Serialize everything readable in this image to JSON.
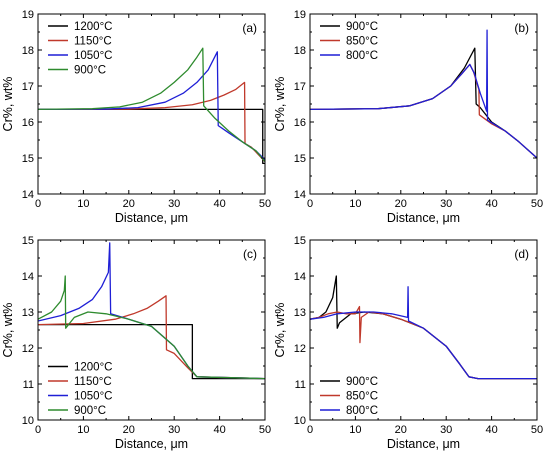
{
  "chart_data": [
    {
      "type": "line",
      "panel": "(a)",
      "xlabel": "Distance, μm",
      "ylabel": "Cr%, wt%",
      "xlim": [
        0,
        50
      ],
      "ylim": [
        14,
        19
      ],
      "xticks": [
        0,
        10,
        20,
        30,
        40,
        50
      ],
      "yticks": [
        14,
        15,
        16,
        17,
        18,
        19
      ],
      "legend_position": "top-left",
      "series": [
        {
          "name": "1200°C",
          "color": "#000000",
          "points": [
            [
              0,
              16.35
            ],
            [
              49.5,
              16.35
            ],
            [
              49.5,
              14.85
            ],
            [
              50,
              14.85
            ]
          ]
        },
        {
          "name": "1150°C",
          "color": "#c0392b",
          "points": [
            [
              0,
              16.35
            ],
            [
              10,
              16.35
            ],
            [
              20,
              16.36
            ],
            [
              28,
              16.4
            ],
            [
              34,
              16.48
            ],
            [
              38,
              16.6
            ],
            [
              41,
              16.75
            ],
            [
              43.5,
              16.9
            ],
            [
              45.5,
              17.1
            ],
            [
              45.6,
              15.4
            ],
            [
              47,
              15.3
            ],
            [
              48.5,
              15.1
            ],
            [
              50,
              14.9
            ]
          ]
        },
        {
          "name": "1050°C",
          "color": "#1f1fd6",
          "points": [
            [
              0,
              16.35
            ],
            [
              15,
              16.36
            ],
            [
              22,
              16.4
            ],
            [
              28,
              16.55
            ],
            [
              32,
              16.8
            ],
            [
              35,
              17.1
            ],
            [
              37.5,
              17.45
            ],
            [
              39.5,
              17.95
            ],
            [
              39.7,
              15.9
            ],
            [
              42,
              15.7
            ],
            [
              45,
              15.45
            ],
            [
              48,
              15.2
            ],
            [
              50,
              14.95
            ]
          ]
        },
        {
          "name": "900°C",
          "color": "#2e8b2e",
          "points": [
            [
              0,
              16.35
            ],
            [
              12,
              16.37
            ],
            [
              18,
              16.42
            ],
            [
              23,
              16.55
            ],
            [
              27,
              16.8
            ],
            [
              30,
              17.1
            ],
            [
              33,
              17.45
            ],
            [
              35,
              17.8
            ],
            [
              36.3,
              18.05
            ],
            [
              36.5,
              16.45
            ],
            [
              39,
              16.1
            ],
            [
              42,
              15.75
            ],
            [
              45,
              15.45
            ],
            [
              48,
              15.2
            ],
            [
              50,
              14.9
            ]
          ]
        }
      ]
    },
    {
      "type": "line",
      "panel": "(b)",
      "xlabel": "Distance, μm",
      "ylabel": "Cr%, wt%",
      "xlim": [
        0,
        50
      ],
      "ylim": [
        14,
        19
      ],
      "xticks": [
        0,
        10,
        20,
        30,
        40,
        50
      ],
      "yticks": [
        14,
        15,
        16,
        17,
        18,
        19
      ],
      "legend_position": "top-left",
      "series": [
        {
          "name": "900°C",
          "color": "#000000",
          "points": [
            [
              0,
              16.35
            ],
            [
              15,
              16.37
            ],
            [
              22,
              16.45
            ],
            [
              27,
              16.65
            ],
            [
              31,
              17.0
            ],
            [
              34,
              17.5
            ],
            [
              36.3,
              18.05
            ],
            [
              36.6,
              16.5
            ],
            [
              37.5,
              16.4
            ],
            [
              40,
              16.0
            ],
            [
              43,
              15.75
            ],
            [
              46,
              15.45
            ],
            [
              50,
              15.0
            ]
          ]
        },
        {
          "name": "850°C",
          "color": "#c0392b",
          "points": [
            [
              0,
              16.35
            ],
            [
              15,
              16.37
            ],
            [
              22,
              16.45
            ],
            [
              27,
              16.65
            ],
            [
              31,
              17.0
            ],
            [
              33.5,
              17.35
            ],
            [
              35.2,
              17.6
            ],
            [
              36,
              17.4
            ],
            [
              37.2,
              16.9
            ],
            [
              37.3,
              16.2
            ],
            [
              40,
              15.95
            ],
            [
              43,
              15.75
            ],
            [
              46,
              15.45
            ],
            [
              50,
              15.0
            ]
          ]
        },
        {
          "name": "800°C",
          "color": "#1f1fd6",
          "points": [
            [
              0,
              16.35
            ],
            [
              15,
              16.37
            ],
            [
              22,
              16.45
            ],
            [
              27,
              16.65
            ],
            [
              31,
              17.0
            ],
            [
              33.5,
              17.35
            ],
            [
              35.2,
              17.6
            ],
            [
              36.2,
              17.35
            ],
            [
              37.5,
              16.8
            ],
            [
              38.9,
              16.3
            ],
            [
              39,
              18.55
            ],
            [
              39.1,
              16.05
            ],
            [
              43,
              15.75
            ],
            [
              46,
              15.45
            ],
            [
              50,
              15.0
            ]
          ]
        }
      ]
    },
    {
      "type": "line",
      "panel": "(c)",
      "xlabel": "Distance, μm",
      "ylabel": "Cr%, wt%",
      "xlim": [
        0,
        50
      ],
      "ylim": [
        10,
        15
      ],
      "xticks": [
        0,
        10,
        20,
        30,
        40,
        50
      ],
      "yticks": [
        10,
        11,
        12,
        13,
        14,
        15
      ],
      "legend_position": "bottom-left",
      "series": [
        {
          "name": "1200°C",
          "color": "#000000",
          "points": [
            [
              0,
              12.65
            ],
            [
              34,
              12.65
            ],
            [
              34,
              11.15
            ],
            [
              50,
              11.15
            ]
          ]
        },
        {
          "name": "1150°C",
          "color": "#c0392b",
          "points": [
            [
              0,
              12.65
            ],
            [
              10,
              12.68
            ],
            [
              17,
              12.8
            ],
            [
              21,
              12.95
            ],
            [
              24,
              13.1
            ],
            [
              26.5,
              13.3
            ],
            [
              28.2,
              13.45
            ],
            [
              28.3,
              11.95
            ],
            [
              30,
              11.85
            ],
            [
              33,
              11.45
            ],
            [
              35,
              11.2
            ],
            [
              50,
              11.15
            ]
          ]
        },
        {
          "name": "1050°C",
          "color": "#1f1fd6",
          "points": [
            [
              0,
              12.75
            ],
            [
              5,
              12.9
            ],
            [
              9,
              13.1
            ],
            [
              12,
              13.35
            ],
            [
              14,
              13.7
            ],
            [
              15.5,
              14.1
            ],
            [
              15.8,
              14.92
            ],
            [
              16,
              12.95
            ],
            [
              20,
              12.8
            ],
            [
              25,
              12.6
            ],
            [
              30,
              12.05
            ],
            [
              33,
              11.5
            ],
            [
              35,
              11.2
            ],
            [
              50,
              11.15
            ]
          ]
        },
        {
          "name": "900°C",
          "color": "#2e8b2e",
          "points": [
            [
              0,
              12.8
            ],
            [
              3,
              13.0
            ],
            [
              5,
              13.3
            ],
            [
              5.8,
              13.6
            ],
            [
              6,
              14.0
            ],
            [
              6.1,
              12.55
            ],
            [
              8,
              12.85
            ],
            [
              11,
              13.0
            ],
            [
              15,
              12.95
            ],
            [
              20,
              12.8
            ],
            [
              25,
              12.6
            ],
            [
              30,
              12.05
            ],
            [
              33,
              11.5
            ],
            [
              35,
              11.2
            ],
            [
              50,
              11.15
            ]
          ]
        }
      ]
    },
    {
      "type": "line",
      "panel": "(d)",
      "xlabel": "Distance, μm",
      "ylabel": "Cr%, wt%",
      "xlim": [
        0,
        50
      ],
      "ylim": [
        10,
        15
      ],
      "xticks": [
        0,
        10,
        20,
        30,
        40,
        50
      ],
      "yticks": [
        10,
        11,
        12,
        13,
        14,
        15
      ],
      "legend_position": "bottom-left",
      "series": [
        {
          "name": "900°C",
          "color": "#000000",
          "points": [
            [
              0,
              12.8
            ],
            [
              2,
              12.85
            ],
            [
              3.5,
              13.0
            ],
            [
              5,
              13.4
            ],
            [
              5.8,
              14.0
            ],
            [
              6,
              12.55
            ],
            [
              6.5,
              12.7
            ],
            [
              9,
              12.95
            ],
            [
              12,
              13.0
            ],
            [
              16,
              12.95
            ],
            [
              20,
              12.8
            ],
            [
              25,
              12.55
            ],
            [
              30,
              12.05
            ],
            [
              33,
              11.55
            ],
            [
              35,
              11.2
            ],
            [
              37,
              11.15
            ],
            [
              50,
              11.15
            ]
          ]
        },
        {
          "name": "850°C",
          "color": "#c0392b",
          "points": [
            [
              0,
              12.8
            ],
            [
              2,
              12.85
            ],
            [
              4,
              12.95
            ],
            [
              6,
              13.0
            ],
            [
              8,
              12.95
            ],
            [
              10,
              12.95
            ],
            [
              10.9,
              13.15
            ],
            [
              11,
              12.15
            ],
            [
              11.3,
              12.85
            ],
            [
              13,
              13.0
            ],
            [
              16,
              12.95
            ],
            [
              20,
              12.8
            ],
            [
              25,
              12.55
            ],
            [
              30,
              12.05
            ],
            [
              33,
              11.55
            ],
            [
              35,
              11.2
            ],
            [
              37,
              11.15
            ],
            [
              50,
              11.15
            ]
          ]
        },
        {
          "name": "800°C",
          "color": "#1f1fd6",
          "points": [
            [
              0,
              12.8
            ],
            [
              3,
              12.85
            ],
            [
              6,
              12.95
            ],
            [
              10,
              13.0
            ],
            [
              14,
              13.0
            ],
            [
              18,
              12.95
            ],
            [
              21.5,
              12.85
            ],
            [
              21.6,
              13.7
            ],
            [
              21.7,
              12.75
            ],
            [
              25,
              12.55
            ],
            [
              30,
              12.05
            ],
            [
              33,
              11.55
            ],
            [
              35,
              11.2
            ],
            [
              37,
              11.15
            ],
            [
              50,
              11.15
            ]
          ]
        }
      ]
    }
  ]
}
